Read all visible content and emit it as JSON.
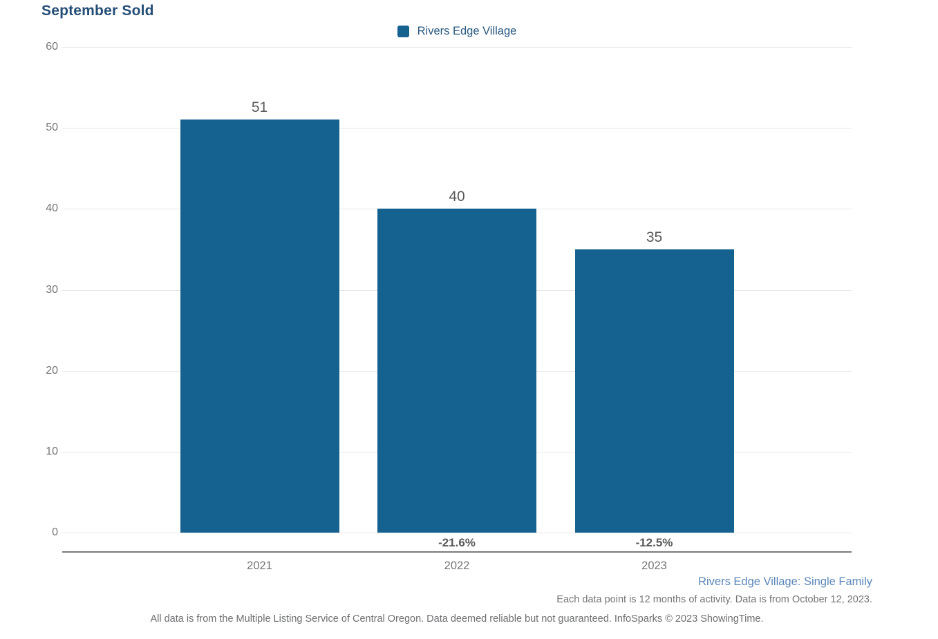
{
  "page": {
    "title": "September Sold"
  },
  "legend": {
    "label": "Rivers Edge Village"
  },
  "chart_data": {
    "type": "bar",
    "title": "September Sold",
    "categories": [
      "2021",
      "2022",
      "2023"
    ],
    "series": [
      {
        "name": "Rivers Edge Village",
        "values": [
          51,
          40,
          35
        ]
      }
    ],
    "value_labels": [
      "51",
      "40",
      "35"
    ],
    "pct_change_labels": [
      "",
      "-21.6%",
      "-12.5%"
    ],
    "xlabel": "",
    "ylabel": "",
    "ylim": [
      0,
      60
    ],
    "yticks": [
      0,
      10,
      20,
      30,
      40,
      50,
      60
    ],
    "grid": true,
    "legend_position": "top-center",
    "bar_color": "#15618F"
  },
  "footer": {
    "series_note": "Rivers Edge Village: Single Family",
    "data_note": "Each data point is 12 months of activity. Data is from October 12, 2023.",
    "disclaimer": "All data is from the Multiple Listing Service of Central Oregon. Data deemed reliable but not guaranteed. InfoSparks © 2023 ShowingTime."
  },
  "colors": {
    "bar": "#15618F",
    "title_text": "#254E77",
    "legend_text": "#28587E",
    "tick_text": "#757575",
    "value_text": "#58595B",
    "gridline": "#E8E8E8",
    "axis_line": "#7B7B7B",
    "series_note_text": "#5B87B8"
  }
}
